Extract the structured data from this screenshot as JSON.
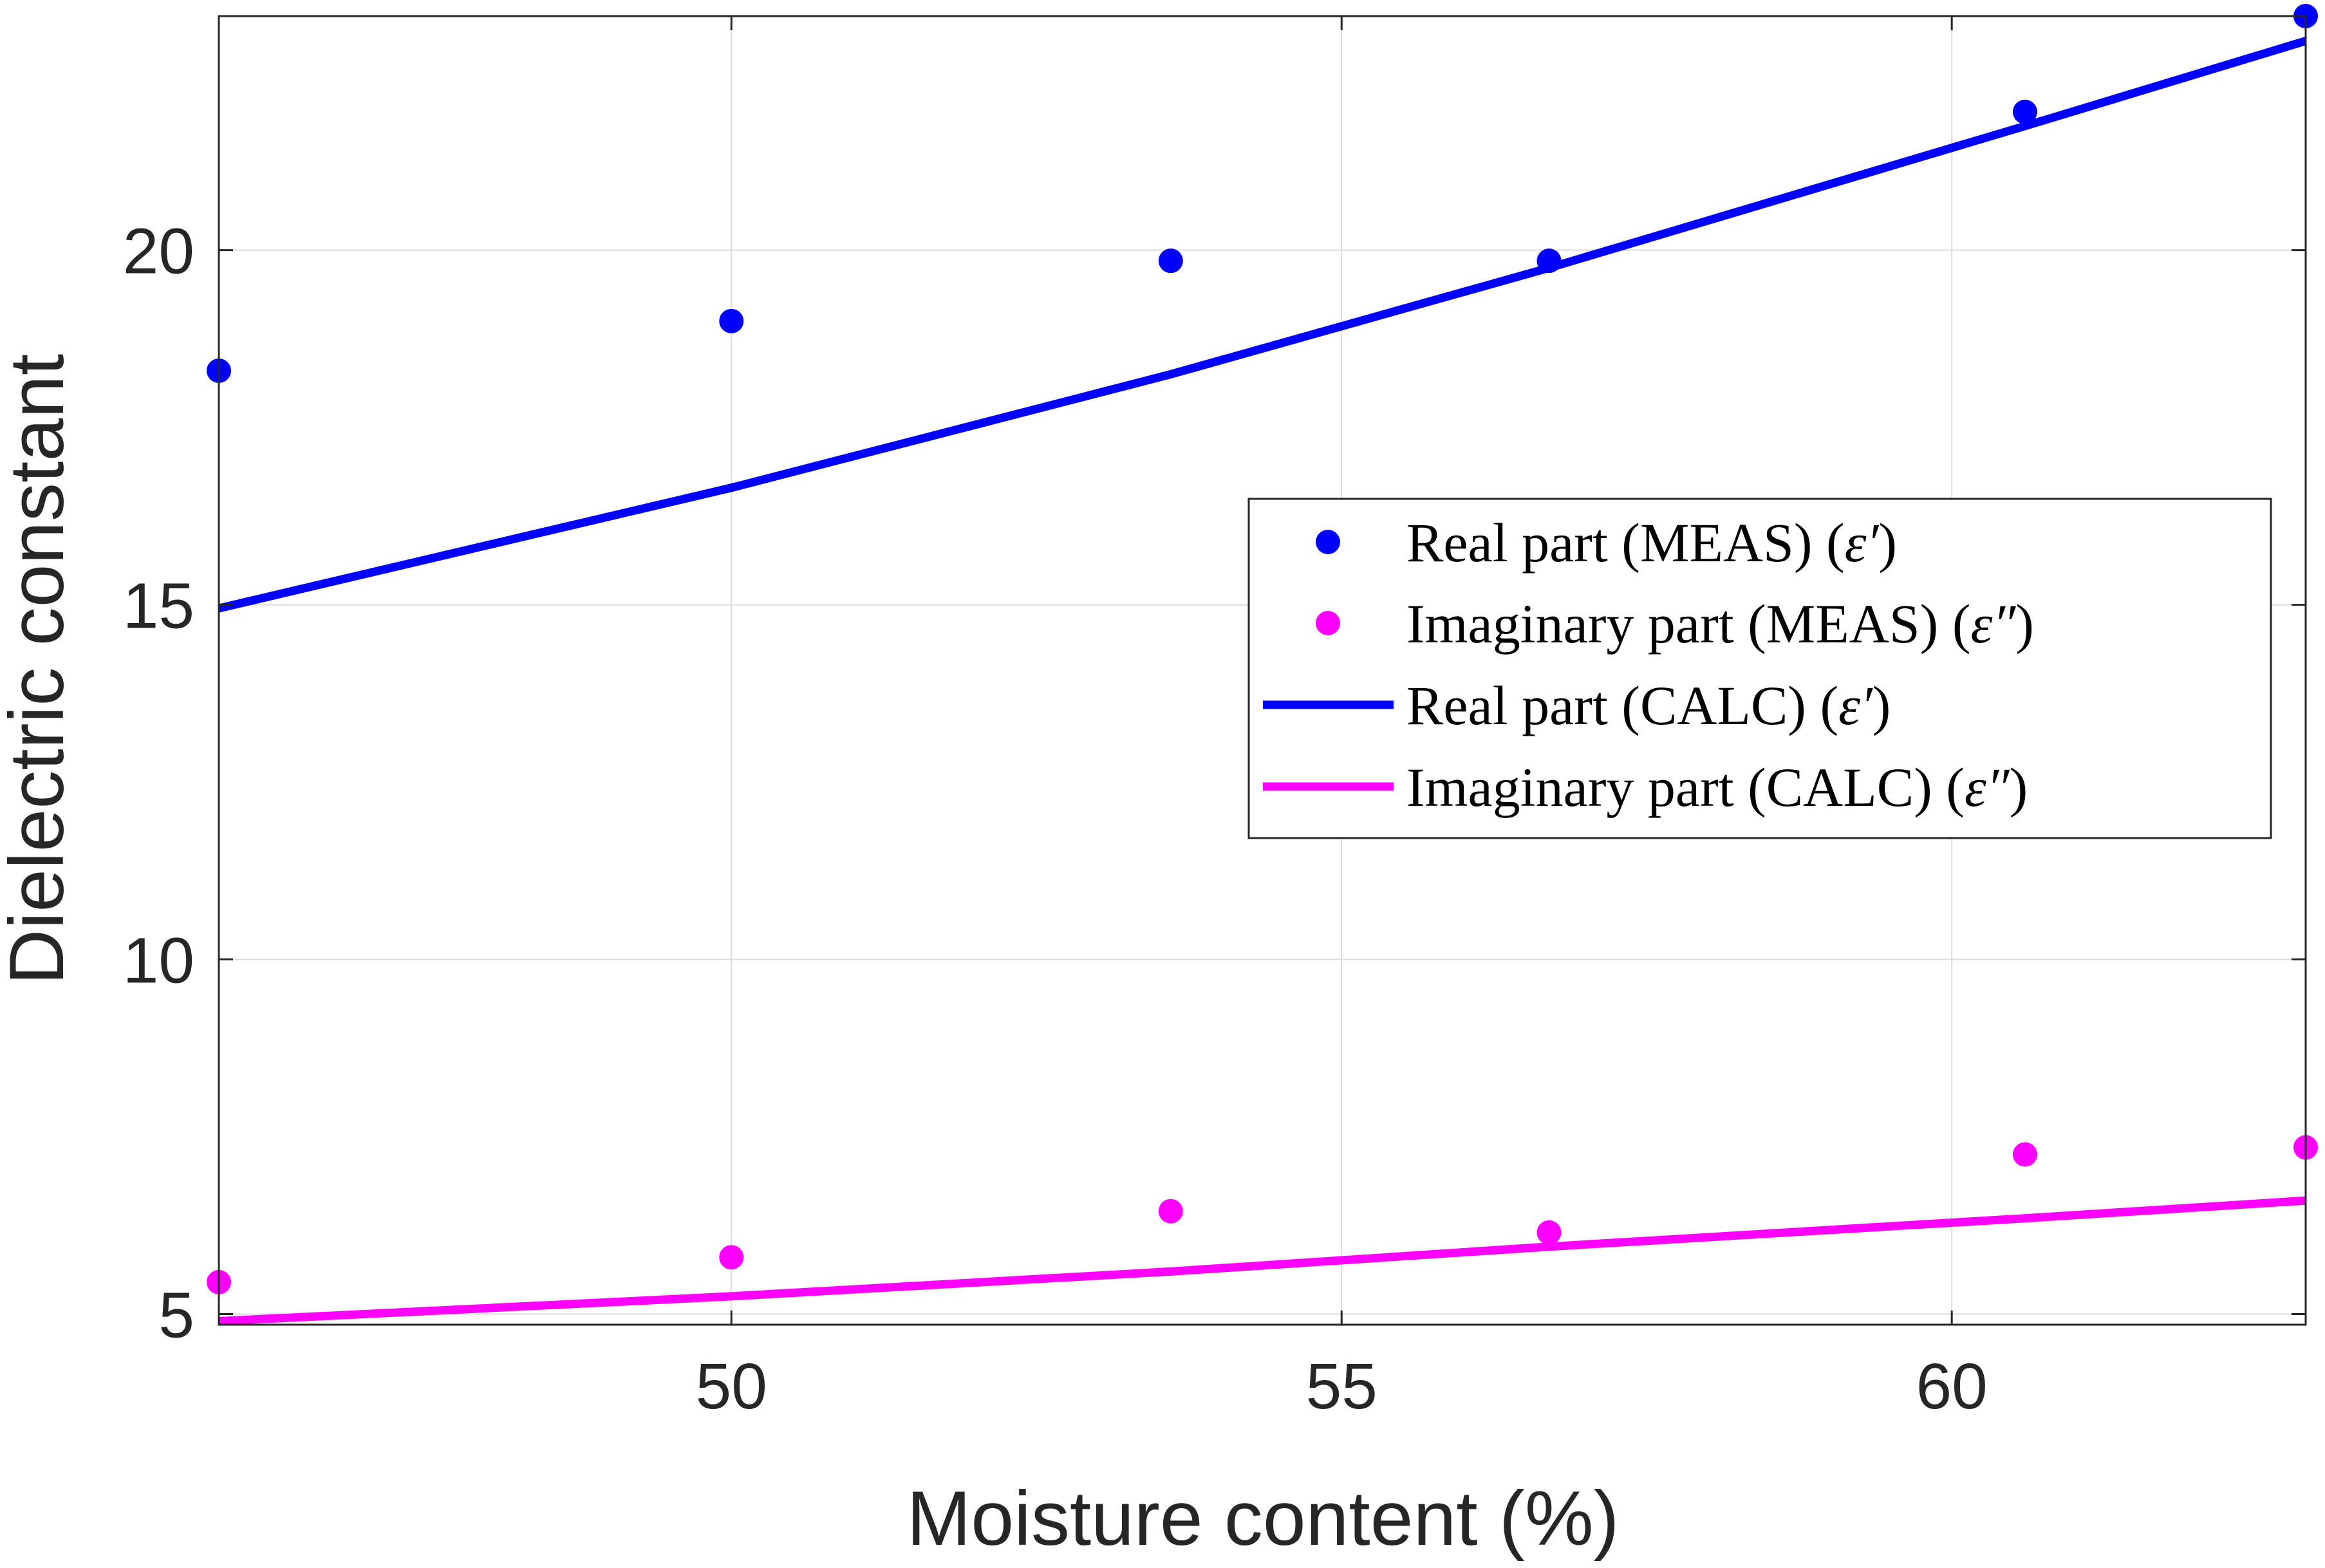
{
  "chart_data": {
    "type": "scatter",
    "title": "",
    "xlabel": "Moisture content (%)",
    "ylabel": "Dielectric constant",
    "xlim": [
      45.8,
      62.9
    ],
    "ylim": [
      4.85,
      23.3
    ],
    "xticks": [
      50,
      55,
      60
    ],
    "yticks": [
      5,
      10,
      15,
      20
    ],
    "grid": true,
    "legend_position": "center-right",
    "series": [
      {
        "name": "Real part (MEAS) (ε′)",
        "legend_prefix": "Real part (MEAS) (",
        "legend_symbol": "ε′",
        "legend_suffix": ")",
        "kind": "markers",
        "color": "#0000FF",
        "x": [
          45.8,
          50.0,
          53.6,
          56.7,
          60.6,
          62.9
        ],
        "y": [
          18.3,
          19.0,
          19.85,
          19.85,
          21.95,
          23.3
        ]
      },
      {
        "name": "Imaginary part (MEAS) (ε″)",
        "legend_prefix": "Imaginary part (MEAS) (",
        "legend_symbol": "ε″",
        "legend_suffix": ")",
        "kind": "markers",
        "color": "#FF00FF",
        "x": [
          45.8,
          50.0,
          53.6,
          56.7,
          60.6,
          62.9
        ],
        "y": [
          5.45,
          5.8,
          6.45,
          6.15,
          7.25,
          7.35
        ]
      },
      {
        "name": "Real part (CALC) (ε′)",
        "legend_prefix": "Real part (CALC) (",
        "legend_symbol": "ε′",
        "legend_suffix": ")",
        "kind": "line",
        "color": "#0000FF",
        "x": [
          45.8,
          50.0,
          53.6,
          56.7,
          60.6,
          62.9
        ],
        "y": [
          14.95,
          16.65,
          18.25,
          19.75,
          21.75,
          22.95
        ]
      },
      {
        "name": "Imaginary part (CALC) (ε″)",
        "legend_prefix": "Imaginary part (CALC) (",
        "legend_symbol": "ε″",
        "legend_suffix": ")",
        "kind": "line",
        "color": "#FF00FF",
        "x": [
          45.8,
          50.0,
          53.6,
          56.7,
          60.6,
          62.9
        ],
        "y": [
          4.9,
          5.25,
          5.6,
          5.95,
          6.35,
          6.6
        ]
      }
    ]
  }
}
